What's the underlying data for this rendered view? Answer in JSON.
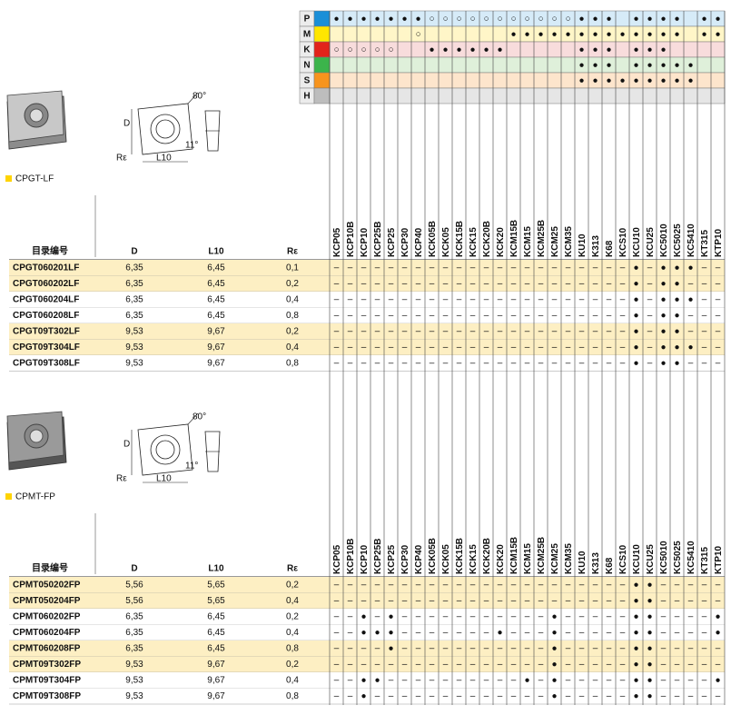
{
  "iso": {
    "rows": [
      {
        "label": "P",
        "color": "#1a8fd8",
        "tint": "#d6ebf8",
        "marks": [
          "●",
          "●",
          "●",
          "●",
          "●",
          "●",
          "●",
          "○",
          "○",
          "○",
          "○",
          "○",
          "○",
          "○",
          "○",
          "○",
          "○",
          "○",
          "●",
          "●",
          "●",
          null,
          "●",
          "●",
          "●",
          "●",
          null,
          "●",
          "●"
        ]
      },
      {
        "label": "M",
        "color": "#ffe600",
        "tint": "#fff6c8",
        "marks": [
          null,
          null,
          null,
          null,
          null,
          null,
          "○",
          null,
          null,
          null,
          null,
          null,
          null,
          "●",
          "●",
          "●",
          "●",
          "●",
          "●",
          "●",
          "●",
          "●",
          "●",
          "●",
          "●",
          "●",
          null,
          "●",
          "●"
        ]
      },
      {
        "label": "K",
        "color": "#e2231a",
        "tint": "#f8dcdc",
        "marks": [
          "○",
          "○",
          "○",
          "○",
          "○",
          null,
          null,
          "●",
          "●",
          "●",
          "●",
          "●",
          "●",
          null,
          null,
          null,
          null,
          null,
          "●",
          "●",
          "●",
          null,
          "●",
          "●",
          "●",
          null,
          null,
          null,
          null
        ]
      },
      {
        "label": "N",
        "color": "#3cb44b",
        "tint": "#dff0da",
        "marks": [
          null,
          null,
          null,
          null,
          null,
          null,
          null,
          null,
          null,
          null,
          null,
          null,
          null,
          null,
          null,
          null,
          null,
          null,
          "●",
          "●",
          "●",
          null,
          "●",
          "●",
          "●",
          "●",
          "●",
          null,
          null
        ]
      },
      {
        "label": "S",
        "color": "#f7941d",
        "tint": "#fde5cc",
        "marks": [
          null,
          null,
          null,
          null,
          null,
          null,
          null,
          null,
          null,
          null,
          null,
          null,
          null,
          null,
          null,
          null,
          null,
          null,
          "●",
          "●",
          "●",
          "●",
          "●",
          "●",
          "●",
          "●",
          "●",
          null,
          null
        ]
      },
      {
        "label": "H",
        "color": "#bdbdbd",
        "tint": "#e6e6e6",
        "marks": [
          null,
          null,
          null,
          null,
          null,
          null,
          null,
          null,
          null,
          null,
          null,
          null,
          null,
          null,
          null,
          null,
          null,
          null,
          null,
          null,
          null,
          null,
          null,
          null,
          null,
          null,
          null,
          null,
          null
        ]
      }
    ]
  },
  "grades": [
    "KCP05",
    "KCP10B",
    "KCP10",
    "KCP25B",
    "KCP25",
    "KCP30",
    "KCP40",
    "KCK05B",
    "KCK05",
    "KCK15B",
    "KCK15",
    "KCK20B",
    "KCK20",
    "KCM15B",
    "KCM15",
    "KCM25B",
    "KCM25",
    "KCM35",
    "KU10",
    "K313",
    "K68",
    "KCS10",
    "KCU10",
    "KCU25",
    "KC5010",
    "KC5025",
    "KC5410",
    "KT315",
    "KTP10"
  ],
  "sections": [
    {
      "title": "CPGT-LF",
      "diagram": {
        "angle": "80°",
        "side_angle": "11°",
        "d": "D",
        "l": "L10",
        "r": "Rε"
      },
      "columns": [
        "目录编号",
        "D",
        "L10",
        "Rε"
      ],
      "rows": [
        {
          "code": "CPGT060201LF",
          "d": "6,35",
          "l10": "6,45",
          "r": "0,1",
          "highlight": true,
          "grades": [
            "–",
            "–",
            "–",
            "–",
            "–",
            "–",
            "–",
            "–",
            "–",
            "–",
            "–",
            "–",
            "–",
            "–",
            "–",
            "–",
            "–",
            "–",
            "–",
            "–",
            "–",
            "–",
            "●",
            "–",
            "●",
            "●",
            "●",
            "–",
            "–"
          ]
        },
        {
          "code": "CPGT060202LF",
          "d": "6,35",
          "l10": "6,45",
          "r": "0,2",
          "highlight": true,
          "grades": [
            "–",
            "–",
            "–",
            "–",
            "–",
            "–",
            "–",
            "–",
            "–",
            "–",
            "–",
            "–",
            "–",
            "–",
            "–",
            "–",
            "–",
            "–",
            "–",
            "–",
            "–",
            "–",
            "●",
            "–",
            "●",
            "●",
            "–",
            "–",
            "–"
          ]
        },
        {
          "code": "CPGT060204LF",
          "d": "6,35",
          "l10": "6,45",
          "r": "0,4",
          "highlight": false,
          "grades": [
            "–",
            "–",
            "–",
            "–",
            "–",
            "–",
            "–",
            "–",
            "–",
            "–",
            "–",
            "–",
            "–",
            "–",
            "–",
            "–",
            "–",
            "–",
            "–",
            "–",
            "–",
            "–",
            "●",
            "–",
            "●",
            "●",
            "●",
            "–",
            "–"
          ]
        },
        {
          "code": "CPGT060208LF",
          "d": "6,35",
          "l10": "6,45",
          "r": "0,8",
          "highlight": false,
          "grades": [
            "–",
            "–",
            "–",
            "–",
            "–",
            "–",
            "–",
            "–",
            "–",
            "–",
            "–",
            "–",
            "–",
            "–",
            "–",
            "–",
            "–",
            "–",
            "–",
            "–",
            "–",
            "–",
            "●",
            "–",
            "●",
            "●",
            "–",
            "–",
            "–"
          ]
        },
        {
          "code": "CPGT09T302LF",
          "d": "9,53",
          "l10": "9,67",
          "r": "0,2",
          "highlight": true,
          "grades": [
            "–",
            "–",
            "–",
            "–",
            "–",
            "–",
            "–",
            "–",
            "–",
            "–",
            "–",
            "–",
            "–",
            "–",
            "–",
            "–",
            "–",
            "–",
            "–",
            "–",
            "–",
            "–",
            "●",
            "–",
            "●",
            "●",
            "–",
            "–",
            "–"
          ]
        },
        {
          "code": "CPGT09T304LF",
          "d": "9,53",
          "l10": "9,67",
          "r": "0,4",
          "highlight": true,
          "grades": [
            "–",
            "–",
            "–",
            "–",
            "–",
            "–",
            "–",
            "–",
            "–",
            "–",
            "–",
            "–",
            "–",
            "–",
            "–",
            "–",
            "–",
            "–",
            "–",
            "–",
            "–",
            "–",
            "●",
            "–",
            "●",
            "●",
            "●",
            "–",
            "–"
          ]
        },
        {
          "code": "CPGT09T308LF",
          "d": "9,53",
          "l10": "9,67",
          "r": "0,8",
          "highlight": false,
          "grades": [
            "–",
            "–",
            "–",
            "–",
            "–",
            "–",
            "–",
            "–",
            "–",
            "–",
            "–",
            "–",
            "–",
            "–",
            "–",
            "–",
            "–",
            "–",
            "–",
            "–",
            "–",
            "–",
            "●",
            "–",
            "●",
            "●",
            "–",
            "–",
            "–"
          ]
        }
      ]
    },
    {
      "title": "CPMT-FP",
      "diagram": {
        "angle": "80°",
        "side_angle": "11°",
        "d": "D",
        "l": "L10",
        "r": "Rε"
      },
      "columns": [
        "目录编号",
        "D",
        "L10",
        "Rε"
      ],
      "rows": [
        {
          "code": "CPMT050202FP",
          "d": "5,56",
          "l10": "5,65",
          "r": "0,2",
          "highlight": true,
          "grades": [
            "–",
            "–",
            "–",
            "–",
            "–",
            "–",
            "–",
            "–",
            "–",
            "–",
            "–",
            "–",
            "–",
            "–",
            "–",
            "–",
            "–",
            "–",
            "–",
            "–",
            "–",
            "–",
            "●",
            "●",
            "–",
            "–",
            "–",
            "–",
            "–"
          ]
        },
        {
          "code": "CPMT050204FP",
          "d": "5,56",
          "l10": "5,65",
          "r": "0,4",
          "highlight": true,
          "grades": [
            "–",
            "–",
            "–",
            "–",
            "–",
            "–",
            "–",
            "–",
            "–",
            "–",
            "–",
            "–",
            "–",
            "–",
            "–",
            "–",
            "–",
            "–",
            "–",
            "–",
            "–",
            "–",
            "●",
            "●",
            "–",
            "–",
            "–",
            "–",
            "–"
          ]
        },
        {
          "code": "CPMT060202FP",
          "d": "6,35",
          "l10": "6,45",
          "r": "0,2",
          "highlight": false,
          "grades": [
            "–",
            "–",
            "●",
            "–",
            "●",
            "–",
            "–",
            "–",
            "–",
            "–",
            "–",
            "–",
            "–",
            "–",
            "–",
            "–",
            "●",
            "–",
            "–",
            "–",
            "–",
            "–",
            "●",
            "●",
            "–",
            "–",
            "–",
            "–",
            "●"
          ]
        },
        {
          "code": "CPMT060204FP",
          "d": "6,35",
          "l10": "6,45",
          "r": "0,4",
          "highlight": false,
          "grades": [
            "–",
            "–",
            "●",
            "●",
            "●",
            "–",
            "–",
            "–",
            "–",
            "–",
            "–",
            "–",
            "●",
            "–",
            "–",
            "–",
            "●",
            "–",
            "–",
            "–",
            "–",
            "–",
            "●",
            "●",
            "–",
            "–",
            "–",
            "–",
            "●"
          ]
        },
        {
          "code": "CPMT060208FP",
          "d": "6,35",
          "l10": "6,45",
          "r": "0,8",
          "highlight": true,
          "grades": [
            "–",
            "–",
            "–",
            "–",
            "●",
            "–",
            "–",
            "–",
            "–",
            "–",
            "–",
            "–",
            "–",
            "–",
            "–",
            "–",
            "●",
            "–",
            "–",
            "–",
            "–",
            "–",
            "●",
            "●",
            "–",
            "–",
            "–",
            "–",
            "–"
          ]
        },
        {
          "code": "CPMT09T302FP",
          "d": "9,53",
          "l10": "9,67",
          "r": "0,2",
          "highlight": true,
          "grades": [
            "–",
            "–",
            "–",
            "–",
            "–",
            "–",
            "–",
            "–",
            "–",
            "–",
            "–",
            "–",
            "–",
            "–",
            "–",
            "–",
            "●",
            "–",
            "–",
            "–",
            "–",
            "–",
            "●",
            "●",
            "–",
            "–",
            "–",
            "–",
            "–"
          ]
        },
        {
          "code": "CPMT09T304FP",
          "d": "9,53",
          "l10": "9,67",
          "r": "0,4",
          "highlight": false,
          "grades": [
            "–",
            "–",
            "●",
            "●",
            "–",
            "–",
            "–",
            "–",
            "–",
            "–",
            "–",
            "–",
            "–",
            "–",
            "●",
            "–",
            "●",
            "–",
            "–",
            "–",
            "–",
            "–",
            "●",
            "●",
            "–",
            "–",
            "–",
            "–",
            "●"
          ]
        },
        {
          "code": "CPMT09T308FP",
          "d": "9,53",
          "l10": "9,67",
          "r": "0,8",
          "highlight": false,
          "grades": [
            "–",
            "–",
            "●",
            "–",
            "–",
            "–",
            "–",
            "–",
            "–",
            "–",
            "–",
            "–",
            "–",
            "–",
            "–",
            "–",
            "●",
            "–",
            "–",
            "–",
            "–",
            "–",
            "●",
            "●",
            "–",
            "–",
            "–",
            "–",
            "–"
          ]
        }
      ]
    }
  ]
}
